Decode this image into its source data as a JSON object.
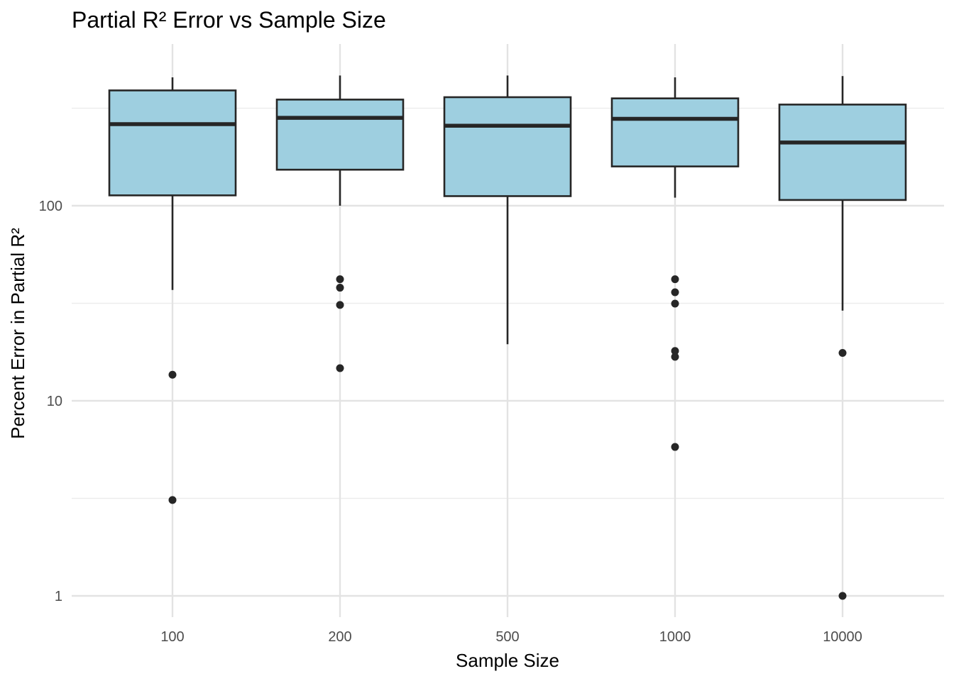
{
  "chart_data": {
    "type": "box",
    "title": "Partial R² Error vs Sample Size",
    "xlabel": "Sample Size",
    "ylabel": "Percent Error in Partial R²",
    "y_scale": "log10",
    "ylim": [
      0.6,
      600
    ],
    "y_ticks": [
      1,
      10,
      100
    ],
    "y_tick_labels": [
      "1",
      "10",
      "100"
    ],
    "grid": true,
    "legend": "none",
    "box_fill": "#9ecfe0",
    "line_color": "#262626",
    "categories": [
      "100",
      "200",
      "500",
      "1000",
      "10000"
    ],
    "boxes": [
      {
        "category": "100",
        "whisker_low": 37,
        "q1": 113,
        "median": 262,
        "q3": 390,
        "whisker_high": 455,
        "outliers": [
          13.6,
          3.1
        ]
      },
      {
        "category": "200",
        "whisker_low": 100,
        "q1": 153,
        "median": 282,
        "q3": 350,
        "whisker_high": 465,
        "outliers": [
          42,
          38,
          31,
          14.7
        ]
      },
      {
        "category": "500",
        "whisker_low": 19.5,
        "q1": 112,
        "median": 257,
        "q3": 360,
        "whisker_high": 465,
        "outliers": []
      },
      {
        "category": "1000",
        "whisker_low": 110,
        "q1": 159,
        "median": 279,
        "q3": 355,
        "whisker_high": 455,
        "outliers": [
          42,
          36,
          31.5,
          18,
          16.8,
          5.8
        ]
      },
      {
        "category": "10000",
        "whisker_low": 29,
        "q1": 107,
        "median": 211,
        "q3": 330,
        "whisker_high": 462,
        "outliers": [
          17.6,
          1.0
        ]
      }
    ]
  }
}
